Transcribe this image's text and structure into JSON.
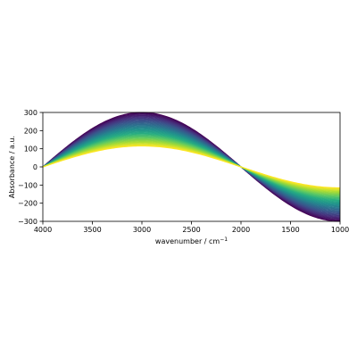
{
  "chart_data": {
    "type": "line",
    "title": "",
    "xlabel": "wavenumber / cm",
    "xlabel_superscript": "−1",
    "ylabel": "Absorbance / a.u.",
    "xlim": [
      4000,
      1000
    ],
    "ylim": [
      -300,
      300
    ],
    "x_inverted": true,
    "grid": false,
    "legend": "none",
    "x_ticks": [
      4000,
      3500,
      3000,
      2500,
      2000,
      1500,
      1000
    ],
    "y_ticks": [
      300,
      200,
      100,
      0,
      -100,
      -200,
      -300
    ],
    "series_model": {
      "function": "A * sin(2*pi*(4000 - x)/4000)",
      "x_range": [
        4000,
        1000
      ],
      "amplitude_range": [
        300,
        115
      ],
      "count": 50
    },
    "colormap": "viridis",
    "colormap_start": "#440154",
    "colormap_end": "#fde725"
  }
}
